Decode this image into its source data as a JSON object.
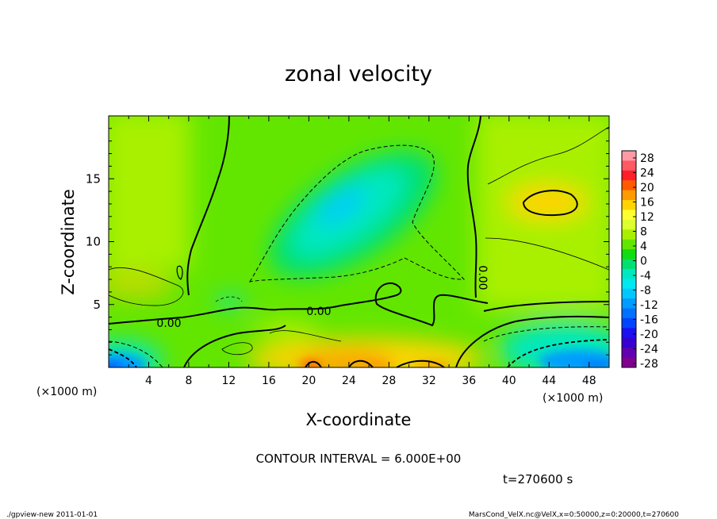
{
  "chart_data": {
    "type": "heatmap",
    "title": "zonal velocity",
    "xlabel": "X-coordinate",
    "ylabel": "Z-coordinate",
    "x_unit": "(×1000 m)",
    "xlim": [
      0,
      50
    ],
    "ylim": [
      0,
      20
    ],
    "x_ticks": [
      4,
      8,
      12,
      16,
      20,
      24,
      28,
      32,
      36,
      40,
      44,
      48
    ],
    "y_ticks": [
      5,
      10,
      15
    ],
    "contour_interval": "CONTOUR INTERVAL = 6.000E+00",
    "contour_labels": [
      "0.00",
      "0.00",
      "0.00"
    ],
    "colorbar": {
      "labels": [
        "28",
        "24",
        "20",
        "16",
        "12",
        "8",
        "4",
        "0",
        "-4",
        "-8",
        "-12",
        "-16",
        "-20",
        "-24",
        "-28"
      ],
      "colors": [
        "#ff9aa5",
        "#ff5a64",
        "#ff1e2a",
        "#ff5a00",
        "#ff9a00",
        "#ffd400",
        "#ffff30",
        "#dcff30",
        "#a8f000",
        "#62e600",
        "#10dc10",
        "#00e070",
        "#00e8c0",
        "#00e8f0",
        "#00c8ff",
        "#009cff",
        "#0070ff",
        "#0044ff",
        "#1a10f0",
        "#3800d0",
        "#6000b0",
        "#800090"
      ]
    },
    "time_label": "t=270600 s",
    "footer_left": "./gpview-new   2011-01-01",
    "footer_right": "MarsCond_VelX.nc@VelX,x=0:50000,z=0:20000,t=270600"
  }
}
